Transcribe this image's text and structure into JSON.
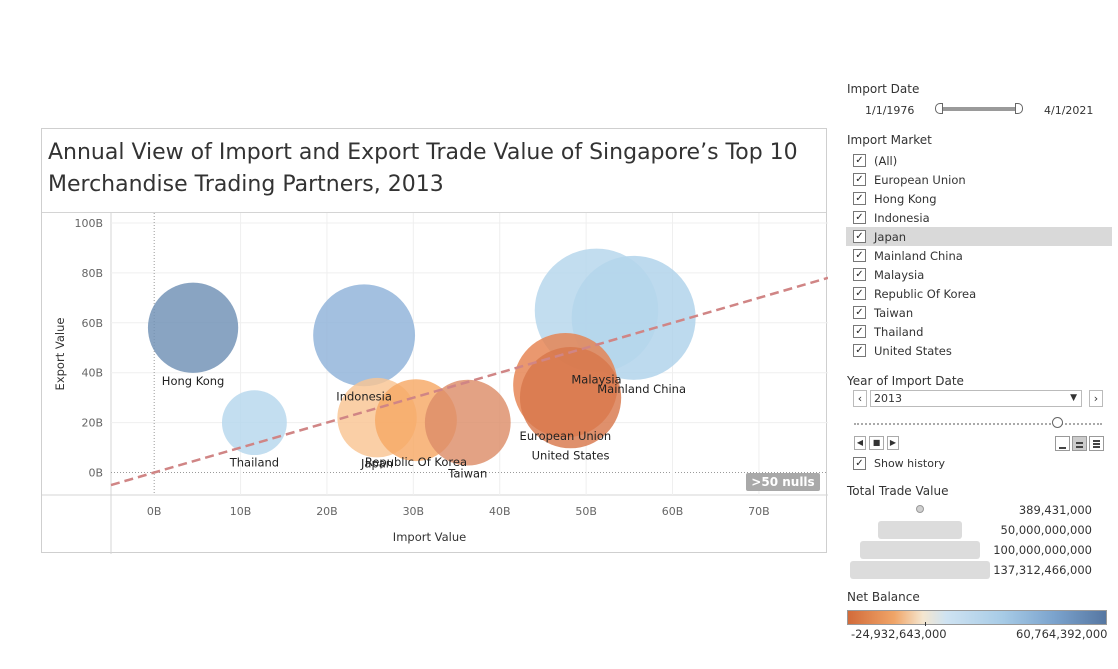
{
  "worksheet": {
    "title_line1": "Annual View of Import and Export Trade Value of Singapore’s Top 10",
    "title_line2": "Merchandise Trading Partners, 2013",
    "null_indicator": ">50 nulls"
  },
  "chart_data": {
    "type": "scatter",
    "xlabel": "Import Value",
    "ylabel": "Export Value",
    "x_ticks": [
      "0B",
      "10B",
      "20B",
      "30B",
      "40B",
      "50B",
      "60B",
      "70B"
    ],
    "y_ticks": [
      "100B",
      "80B",
      "60B",
      "40B",
      "20B",
      "0B"
    ],
    "xlim": [
      -5,
      78
    ],
    "ylim": [
      -9,
      104
    ],
    "bubble_size_encodes": "Total Trade Value",
    "color_encodes": "Net Balance",
    "points": [
      {
        "label": "Mainland China",
        "x": 55.5,
        "y": 62,
        "total": 117,
        "net": 6.5,
        "color": "#afd2ea"
      },
      {
        "label": "Malaysia",
        "x": 51.2,
        "y": 65,
        "total": 116,
        "net": 13.8,
        "color": "#b4d5ec"
      },
      {
        "label": "Indonesia",
        "x": 24.3,
        "y": 55,
        "total": 79,
        "net": 30.7,
        "color": "#8fb2d9"
      },
      {
        "label": "Hong Kong",
        "x": 4.5,
        "y": 58,
        "total": 62,
        "net": 53.5,
        "color": "#6f90b5"
      },
      {
        "label": "Thailand",
        "x": 11.6,
        "y": 20,
        "total": 32,
        "net": 8.4,
        "color": "#b6d7ed"
      },
      {
        "label": "Japan",
        "x": 25.8,
        "y": 22,
        "total": 48,
        "net": -3.8,
        "color": "#f9c592"
      },
      {
        "label": "Republic Of Korea",
        "x": 30.3,
        "y": 21,
        "total": 51,
        "net": -9.3,
        "color": "#f6a865"
      },
      {
        "label": "Taiwan",
        "x": 36.3,
        "y": 20,
        "total": 56,
        "net": -16.3,
        "color": "#dd8e69"
      },
      {
        "label": "European Union",
        "x": 47.6,
        "y": 35,
        "total": 83,
        "net": -12.6,
        "color": "#e5814f"
      },
      {
        "label": "United States",
        "x": 48.2,
        "y": 30,
        "total": 78,
        "net": -18.2,
        "color": "#d8774c"
      }
    ],
    "trend_line": {
      "x": [
        -5,
        78
      ],
      "y": [
        -5,
        78
      ],
      "color": "#d08585"
    }
  },
  "panel": {
    "import_date": {
      "title": "Import Date",
      "start": "1/1/1976",
      "end": "4/1/2021"
    },
    "import_market": {
      "title": "Import Market",
      "items": [
        "(All)",
        "European Union",
        "Hong Kong",
        "Indonesia",
        "Japan",
        "Mainland China",
        "Malaysia",
        "Republic Of Korea",
        "Taiwan",
        "Thailand",
        "United States"
      ],
      "highlighted": "Japan",
      "check_glyph": "✓"
    },
    "year": {
      "title": "Year of Import Date",
      "value": "2013",
      "show_history": "Show history"
    },
    "total_trade_value": {
      "title": "Total Trade Value",
      "values": [
        "389,431,000",
        "50,000,000,000",
        "100,000,000,000",
        "137,312,466,000"
      ]
    },
    "net_balance": {
      "title": "Net Balance",
      "min": "-24,932,643,000",
      "max": "60,764,392,000"
    }
  }
}
